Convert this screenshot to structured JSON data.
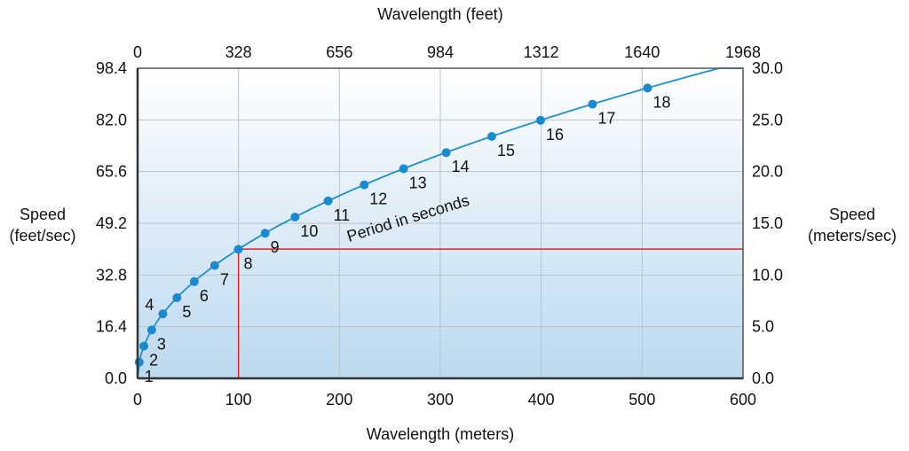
{
  "chart_data": {
    "type": "line",
    "title": "",
    "xlabel_bottom": "Wavelength (meters)",
    "xlabel_top": "Wavelength (feet)",
    "ylabel_left": [
      "Speed",
      "(feet/sec)"
    ],
    "ylabel_right": [
      "Speed",
      "(meters/sec)"
    ],
    "xlim": [
      0,
      600
    ],
    "ylim": [
      0,
      30
    ],
    "x_ticks_bottom": [
      "0",
      "100",
      "200",
      "300",
      "400",
      "500",
      "600"
    ],
    "x_ticks_top": [
      "0",
      "328",
      "656",
      "984",
      "1312",
      "1640",
      "1968"
    ],
    "y_ticks_left": [
      "0.0",
      "16.4",
      "32.8",
      "49.2",
      "65.6",
      "82.0",
      "98.4"
    ],
    "y_ticks_right": [
      "0.0",
      "5.0",
      "10.0",
      "15.0",
      "20.0",
      "25.0",
      "30.0"
    ],
    "grid": true,
    "annotation": "Period in seconds",
    "series": [
      {
        "name": "Period in seconds",
        "points": [
          {
            "label": "1",
            "x": 1.56,
            "y": 1.56
          },
          {
            "label": "2",
            "x": 6.24,
            "y": 3.12
          },
          {
            "label": "3",
            "x": 14.0,
            "y": 4.68
          },
          {
            "label": "4",
            "x": 25.0,
            "y": 6.24
          },
          {
            "label": "5",
            "x": 39.0,
            "y": 7.8
          },
          {
            "label": "6",
            "x": 56.2,
            "y": 9.36
          },
          {
            "label": "7",
            "x": 76.4,
            "y": 10.92
          },
          {
            "label": "8",
            "x": 99.8,
            "y": 12.48
          },
          {
            "label": "9",
            "x": 126.4,
            "y": 14.04
          },
          {
            "label": "10",
            "x": 156.0,
            "y": 15.6
          },
          {
            "label": "11",
            "x": 188.8,
            "y": 17.16
          },
          {
            "label": "12",
            "x": 224.6,
            "y": 18.72
          },
          {
            "label": "13",
            "x": 263.6,
            "y": 20.28
          },
          {
            "label": "14",
            "x": 305.8,
            "y": 21.84
          },
          {
            "label": "15",
            "x": 351.0,
            "y": 23.4
          },
          {
            "label": "16",
            "x": 399.4,
            "y": 24.96
          },
          {
            "label": "17",
            "x": 450.8,
            "y": 26.52
          },
          {
            "label": "18",
            "x": 505.4,
            "y": 28.08
          }
        ]
      }
    ],
    "reference_point": {
      "x": 100,
      "y": 12.5
    },
    "colors": {
      "curve": "#1e8fcb",
      "point": "#1a8ad0",
      "reference": "#d9262b",
      "grid": "#b8c4cc",
      "bg_top": "#ffffff",
      "bg_bottom": "#bcd9ef"
    }
  }
}
